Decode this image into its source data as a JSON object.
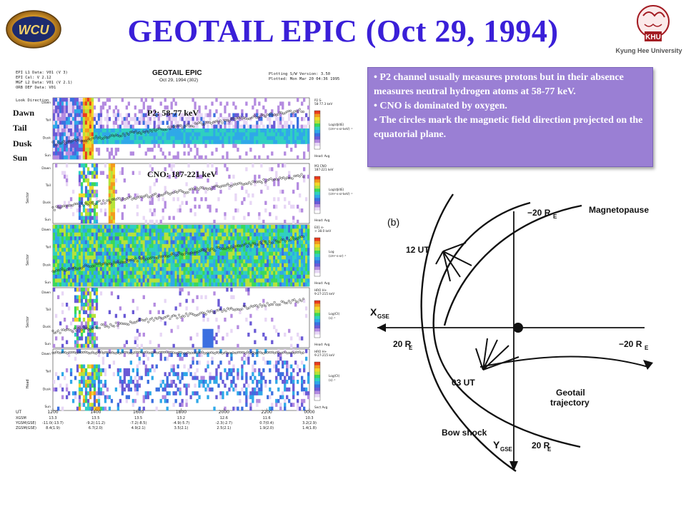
{
  "header": {
    "title": "GEOTAIL EPIC (Oct 29, 1994)",
    "left_logo": "WCU",
    "right_logo": "KHU",
    "right_logo_caption": "Kyung Hee University"
  },
  "epic_figure": {
    "title": "GEOTAIL EPIC",
    "subtitle": "Oct 29, 1994 (302)",
    "header_left": [
      "EPI L1 Data: V01 (V 3)",
      "EPI Cal: V 2.12",
      "MGF L2 Data: V01 (V 2.1)",
      "ORB DEF Data: V01"
    ],
    "header_right": [
      "Plotting S/W Version: 3.50",
      "Plotted: Mon Mar 20 04:36 1995"
    ],
    "look_direction": "Look Direction",
    "side_labels": [
      "Dawn",
      "Tail",
      "Dusk",
      "Sun"
    ],
    "panel_labels": [
      "P2: 58-77 keV",
      "CNO: 187-221 keV"
    ],
    "panel_axis_left": [
      "Sector",
      "Sector",
      "Sector",
      "Head"
    ],
    "panel_ticks": [
      "Dawn",
      "Tail",
      "Dusk",
      "Sun"
    ],
    "colorbar_notes": [
      "P2 S-\n58-77.3 keV",
      "M3 CNO\n187-221 keV",
      "E01 e-\n> 38.0 keV",
      "HRO H+\n9-27-215 keV",
      "HRO H+\n9-27-215 keV"
    ],
    "colorbar_units": [
      "Log(dJ/dE)\n(cm²-s-sr-keV)⁻¹",
      "Log(dJ/dE)\n(cm²-s-sr-keV)⁻¹",
      "Log\n(cm²-s-sr)⁻¹",
      "Log(Ct)\n(s)⁻¹",
      "Log(Ct)\n(s)⁻¹"
    ],
    "colorbar_footers": [
      "Head: Avg",
      "Head: Avg",
      "Head: Avg",
      "Head: Avg",
      "Sect Avg"
    ],
    "ut_label": "UT",
    "ut_ticks": [
      "1200",
      "1400",
      "1600",
      "1800",
      "2000",
      "2200",
      "0000"
    ],
    "x_gsm_label": "XGSM",
    "x_gsm": [
      "13.3",
      "13.5",
      "13.5",
      "13.2",
      "12.6",
      "11.6",
      "10.3"
    ],
    "y_gsm_label": "YGSM(GSE)",
    "y_gsm": [
      "-11.0(-13.7)",
      "-9.2(-11.2)",
      "-7.2(-8.5)",
      "-4.9(-5.7)",
      "-2.3(-2.7)",
      "0.7(0.4)",
      "3.2(2.9)"
    ],
    "z_gsm_label": "ZGSM(GSE)",
    "z_gsm": [
      "8.4(1.9)",
      "6.7(2.0)",
      "4.9(2.1)",
      "3.5(2.1)",
      "2.5(2.1)",
      "1.9(2.0)",
      "1.4(1.8)"
    ]
  },
  "note": {
    "bullets": [
      "• P2 channel usually measures protons but in their absence measures neutral hydrogen atoms at 58-77 keV.",
      "• CNO is dominated by oxygen.",
      "• The circles mark the magnetic field direction projected on the equatorial plane."
    ]
  },
  "schematic": {
    "panel_tag": "(b)",
    "magnetopause_label": "Magnetopause",
    "top_distance": "−20 R",
    "top_distance_sub": "E",
    "ut12_label": "12 UT",
    "ut03_label": "03 UT",
    "x_axis_label": "X",
    "x_axis_sub": "GSE",
    "left_distance": "20 R",
    "left_distance_sub": "E",
    "right_distance": "−20 R",
    "right_distance_sub": "E",
    "trajectory_label_1": "Geotail",
    "trajectory_label_2": "trajectory",
    "bowshock_label": "Bow shock",
    "y_axis_label": "Y",
    "y_axis_sub": "GSE",
    "bottom_distance": "20 R",
    "bottom_distance_sub": "E"
  },
  "colors": {
    "title": "#3a1fd8",
    "note_bg": "#9a7fd4"
  }
}
